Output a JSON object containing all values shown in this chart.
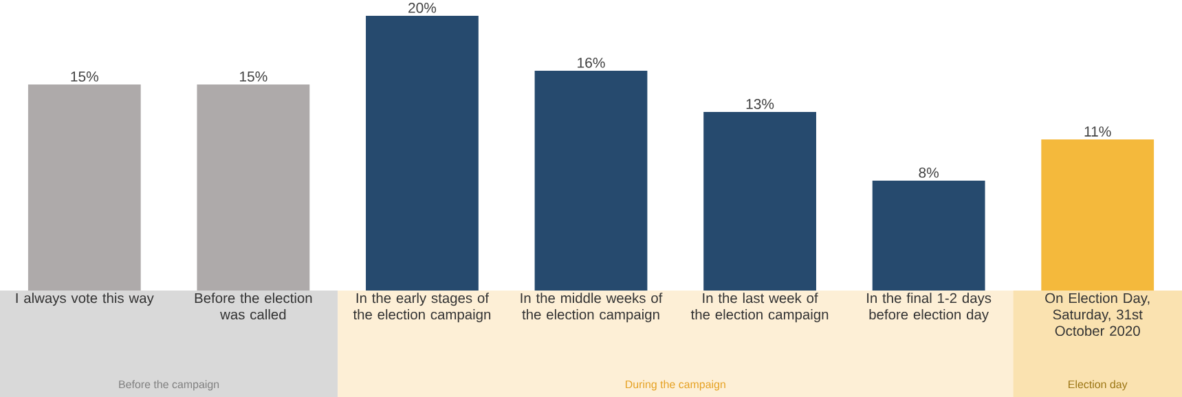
{
  "chart_data": {
    "type": "bar",
    "categories": [
      "I always vote this way",
      "Before the election was called",
      "In the early stages of the election campaign",
      "In the middle weeks of the election campaign",
      "In the last week of the election campaign",
      "In the final 1-2 days before election day",
      "On Election Day, Saturday, 31st October 2020"
    ],
    "values": [
      15,
      15,
      20,
      16,
      13,
      8,
      11
    ],
    "colors": [
      "#aeaaaa",
      "#aeaaaa",
      "#264a6e",
      "#264a6e",
      "#264a6e",
      "#264a6e",
      "#f4b93c"
    ],
    "value_labels": [
      "15%",
      "15%",
      "20%",
      "16%",
      "13%",
      "8%",
      "11%"
    ],
    "annotations": [
      "Before the campaign",
      "During the campaign",
      "Election day"
    ]
  }
}
